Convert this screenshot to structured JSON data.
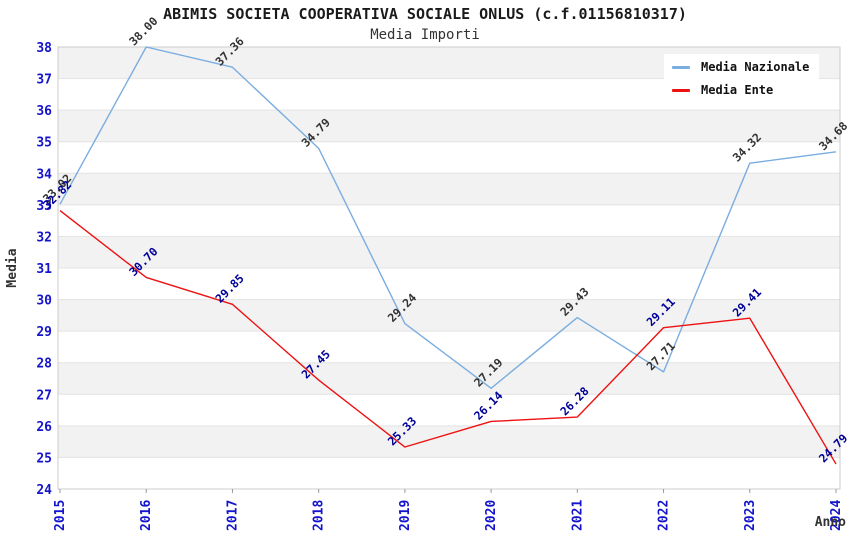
{
  "title": "ABIMIS SOCIETA COOPERATIVA SOCIALE ONLUS (c.f.01156810317)",
  "subtitle": "Media Importi",
  "axes": {
    "ylabel": "Media",
    "xlabel": "Anno",
    "y_ticks": [
      24,
      25,
      26,
      27,
      28,
      29,
      30,
      31,
      32,
      33,
      34,
      35,
      36,
      37,
      38
    ],
    "x_ticks": [
      "2015",
      "2016",
      "2017",
      "2018",
      "2019",
      "2020",
      "2021",
      "2022",
      "2023",
      "2024"
    ]
  },
  "colors": {
    "tick_label": "#1414cc",
    "band_gray": "#f2f2f2",
    "band_white": "#ffffff",
    "gridline": "#e3e3e3",
    "plot_border": "#cccccc",
    "axis_title": "#333333",
    "title_text": "#1a1a1a"
  },
  "chart_data": {
    "type": "line",
    "title": "ABIMIS SOCIETA COOPERATIVA SOCIALE ONLUS (c.f.01156810317)",
    "subtitle": "Media Importi",
    "xlabel": "Anno",
    "ylabel": "Media",
    "x": [
      "2015",
      "2016",
      "2017",
      "2018",
      "2019",
      "2020",
      "2021",
      "2022",
      "2023",
      "2024"
    ],
    "ylim": [
      24,
      38
    ],
    "grid": "horizontal-bands",
    "legend_position": "top-right",
    "series": [
      {
        "name": "Media Nazionale",
        "color": "#7aade0",
        "label_color": "#333333",
        "values": [
          33.02,
          38.0,
          37.36,
          34.79,
          29.24,
          27.19,
          29.43,
          27.71,
          34.32,
          34.68
        ],
        "labels": [
          "33.02",
          "38.00",
          "37.36",
          "34.79",
          "29.24",
          "27.19",
          "29.43",
          "27.71",
          "34.32",
          "34.68"
        ]
      },
      {
        "name": "Media Ente",
        "color": "#ee1111",
        "label_color": "#000099",
        "values": [
          32.82,
          30.7,
          29.85,
          27.45,
          25.33,
          26.14,
          26.28,
          29.11,
          29.41,
          24.79
        ],
        "labels": [
          "32.82",
          "30.70",
          "29.85",
          "27.45",
          "25.33",
          "26.14",
          "26.28",
          "29.11",
          "29.41",
          "24.79"
        ]
      }
    ]
  }
}
